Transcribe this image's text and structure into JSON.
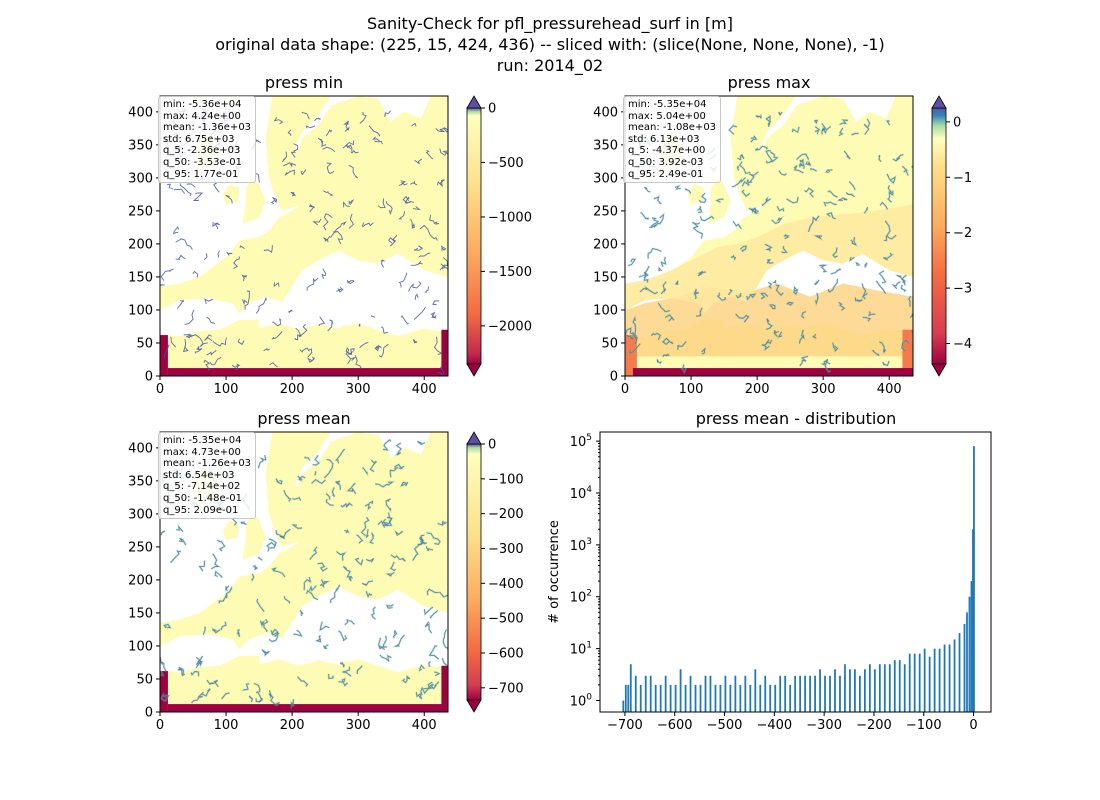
{
  "suptitle": {
    "line1": "Sanity-Check for pfl_pressurehead_surf in [m]",
    "line2": "original data shape: (225, 15, 424, 436) -- sliced with: (slice(None, None, None), -1)",
    "line3": "run: 2014_02"
  },
  "colors": {
    "land": "#fdfbb4",
    "coast": "#9e0142",
    "river": "#3f51a3",
    "bars": "#1f77b4"
  },
  "chart_data": [
    {
      "type": "heatmap",
      "title": "press min",
      "xlim": [
        0,
        436
      ],
      "ylim": [
        0,
        424
      ],
      "xticks": [
        0,
        100,
        200,
        300,
        400
      ],
      "yticks": [
        0,
        50,
        100,
        150,
        200,
        250,
        300,
        350,
        400
      ],
      "colormap": "Spectral",
      "colorbar": {
        "min": -2350,
        "max": 0,
        "ticks": [
          0,
          -500,
          -1000,
          -1500,
          -2000
        ],
        "ticklabels": [
          "0",
          "−500",
          "−1000",
          "−1500",
          "−2000"
        ]
      },
      "stats": [
        "min: -5.36e+04",
        "max: 4.24e+00",
        "mean: -1.36e+03",
        "std: 6.75e+03",
        "q_5: -2.36e+03",
        "q_50: -3.53e-01",
        "q_95: 1.77e-01"
      ]
    },
    {
      "type": "heatmap",
      "title": "press max",
      "xlim": [
        0,
        436
      ],
      "ylim": [
        0,
        424
      ],
      "xticks": [
        0,
        100,
        200,
        300,
        400
      ],
      "yticks": [
        0,
        50,
        100,
        150,
        200,
        250,
        300,
        350,
        400
      ],
      "colormap": "Spectral",
      "colorbar": {
        "min": -4.37,
        "max": 0.25,
        "ticks": [
          0,
          -1,
          -2,
          -3,
          -4
        ],
        "ticklabels": [
          "0",
          "−1",
          "−2",
          "−3",
          "−4"
        ]
      },
      "stats": [
        "min: -5.35e+04",
        "max: 5.04e+00",
        "mean: -1.08e+03",
        "std: 6.13e+03",
        "q_5: -4.37e+00",
        "q_50: 3.92e-03",
        "q_95: 2.49e-01"
      ]
    },
    {
      "type": "heatmap",
      "title": "press mean",
      "xlim": [
        0,
        436
      ],
      "ylim": [
        0,
        424
      ],
      "xticks": [
        0,
        100,
        200,
        300,
        400
      ],
      "yticks": [
        0,
        50,
        100,
        150,
        200,
        250,
        300,
        350,
        400
      ],
      "colormap": "Spectral",
      "colorbar": {
        "min": -735,
        "max": 0,
        "ticks": [
          0,
          -100,
          -200,
          -300,
          -400,
          -500,
          -600,
          -700
        ],
        "ticklabels": [
          "0",
          "−100",
          "−200",
          "−300",
          "−400",
          "−500",
          "−600",
          "−700"
        ]
      },
      "stats": [
        "min: -5.35e+04",
        "max: 4.73e+00",
        "mean: -1.26e+03",
        "std: 6.54e+03",
        "q_5: -7.14e+02",
        "q_50: -1.48e-01",
        "q_95: 2.09e-01"
      ]
    },
    {
      "type": "bar",
      "title": "press mean - distribution",
      "ylabel": "# of occurrence",
      "yscale": "log",
      "xlim": [
        -750,
        35
      ],
      "ylim": [
        0.6,
        150000
      ],
      "xticks": [
        -700,
        -600,
        -500,
        -400,
        -300,
        -200,
        -100,
        0
      ],
      "xticklabels": [
        "−700",
        "−600",
        "−500",
        "−400",
        "−300",
        "−200",
        "−100",
        "0"
      ],
      "yticks": [
        1,
        10,
        100,
        1000,
        10000,
        100000
      ],
      "yticklabels": [
        "10^0",
        "10^1",
        "10^2",
        "10^3",
        "10^4",
        "10^5"
      ],
      "bin_width": 3.57,
      "x": [
        -705,
        -700,
        -695,
        -690,
        -680,
        -670,
        -660,
        -650,
        -640,
        -630,
        -620,
        -610,
        -600,
        -590,
        -580,
        -570,
        -560,
        -550,
        -540,
        -530,
        -520,
        -510,
        -500,
        -490,
        -480,
        -470,
        -460,
        -450,
        -440,
        -430,
        -420,
        -410,
        -400,
        -390,
        -380,
        -370,
        -360,
        -350,
        -340,
        -330,
        -320,
        -310,
        -300,
        -290,
        -280,
        -270,
        -260,
        -250,
        -240,
        -230,
        -220,
        -210,
        -200,
        -190,
        -180,
        -170,
        -160,
        -150,
        -140,
        -130,
        -120,
        -110,
        -100,
        -90,
        -80,
        -70,
        -60,
        -50,
        -40,
        -30,
        -20,
        -15,
        -10,
        -6,
        -3,
        -1
      ],
      "values": [
        1,
        2,
        2,
        5,
        3,
        2,
        3,
        3,
        2,
        2,
        3,
        2,
        2,
        4,
        2,
        3,
        2,
        2,
        3,
        3,
        2,
        2,
        3,
        2,
        3,
        2,
        3,
        2,
        4,
        2,
        3,
        2,
        2,
        3,
        3,
        2,
        3,
        3,
        3,
        3,
        3,
        4,
        3,
        3,
        4,
        3,
        5,
        4,
        4,
        3,
        4,
        5,
        4,
        5,
        5,
        5,
        6,
        6,
        5,
        8,
        8,
        8,
        10,
        7,
        10,
        10,
        12,
        12,
        15,
        20,
        30,
        50,
        100,
        200,
        2000,
        80000
      ]
    }
  ]
}
